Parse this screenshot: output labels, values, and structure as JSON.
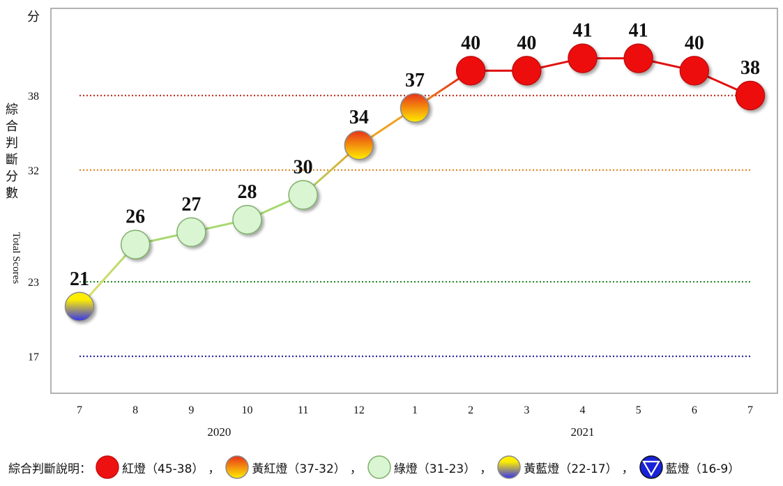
{
  "chart_data": {
    "type": "line",
    "y_unit": "分",
    "ylabel_zh": "綜合判斷分數",
    "ylabel_en": "Total Scores",
    "ylim": [
      10,
      48
    ],
    "threshold_lines": [
      {
        "value": 38,
        "label": "38",
        "color": "#c0392b"
      },
      {
        "value": 32,
        "label": "32",
        "color": "#e08a2a"
      },
      {
        "value": 23,
        "label": "23",
        "color": "#2e8b2e"
      },
      {
        "value": 17,
        "label": "17",
        "color": "#2a2aa0"
      }
    ],
    "categories": [
      "7",
      "8",
      "9",
      "10",
      "11",
      "12",
      "1",
      "2",
      "3",
      "4",
      "5",
      "6",
      "7"
    ],
    "year_labels": [
      {
        "label": "2020",
        "from": 0,
        "to": 5
      },
      {
        "label": "2021",
        "from": 6,
        "to": 12
      }
    ],
    "values": [
      21,
      26,
      27,
      28,
      30,
      34,
      37,
      40,
      40,
      41,
      41,
      40,
      38
    ],
    "signals": [
      "yellow-blue",
      "green",
      "green",
      "green",
      "green",
      "yellow-red",
      "yellow-red",
      "red",
      "red",
      "red",
      "red",
      "red",
      "red"
    ],
    "grid": false
  },
  "legend": {
    "title": "綜合判斷說明：",
    "separator": "，",
    "items": [
      {
        "signal": "red",
        "label": "紅燈（45-38）"
      },
      {
        "signal": "yellow-red",
        "label": "黃紅燈（37-32）"
      },
      {
        "signal": "green",
        "label": "綠燈（31-23）"
      },
      {
        "signal": "yellow-blue",
        "label": "黃藍燈（22-17）"
      },
      {
        "signal": "blue",
        "label": "藍燈（16-9）"
      }
    ]
  },
  "colors": {
    "red": "#ee1111",
    "yellow_red_top": "#e8321a",
    "yellow_red_bottom": "#ffee00",
    "green": "#d9f5d2",
    "yellow_blue_top": "#ffee00",
    "yellow_blue_bottom": "#3333ee",
    "blue": "#1a22d8"
  }
}
